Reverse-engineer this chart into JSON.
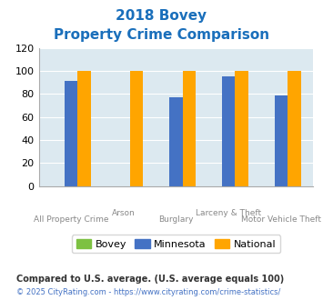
{
  "title_line1": "2018 Bovey",
  "title_line2": "Property Crime Comparison",
  "title_color": "#1a6fbb",
  "categories": [
    "All Property Crime",
    "Arson",
    "Burglary",
    "Larceny & Theft",
    "Motor Vehicle Theft"
  ],
  "x_labels_row1": [
    "",
    "Arson",
    "",
    "Larceny & Theft",
    ""
  ],
  "x_labels_row2": [
    "All Property Crime",
    "",
    "Burglary",
    "",
    "Motor Vehicle Theft"
  ],
  "bovey": [
    0,
    0,
    0,
    0,
    0
  ],
  "minnesota": [
    91,
    0,
    77,
    95,
    79
  ],
  "national": [
    100,
    100,
    100,
    100,
    100
  ],
  "bar_color_bovey": "#7dc142",
  "bar_color_minnesota": "#4472c4",
  "bar_color_national": "#ffa500",
  "ylim": [
    0,
    120
  ],
  "yticks": [
    0,
    20,
    40,
    60,
    80,
    100,
    120
  ],
  "bg_color": "#dce9f0",
  "legend_bovey": "Bovey",
  "legend_minnesota": "Minnesota",
  "legend_national": "National",
  "footnote1": "Compared to U.S. average. (U.S. average equals 100)",
  "footnote2": "© 2025 CityRating.com - https://www.cityrating.com/crime-statistics/",
  "footnote1_color": "#333333",
  "footnote2_color": "#4472c4",
  "x_label_color": "#888888"
}
